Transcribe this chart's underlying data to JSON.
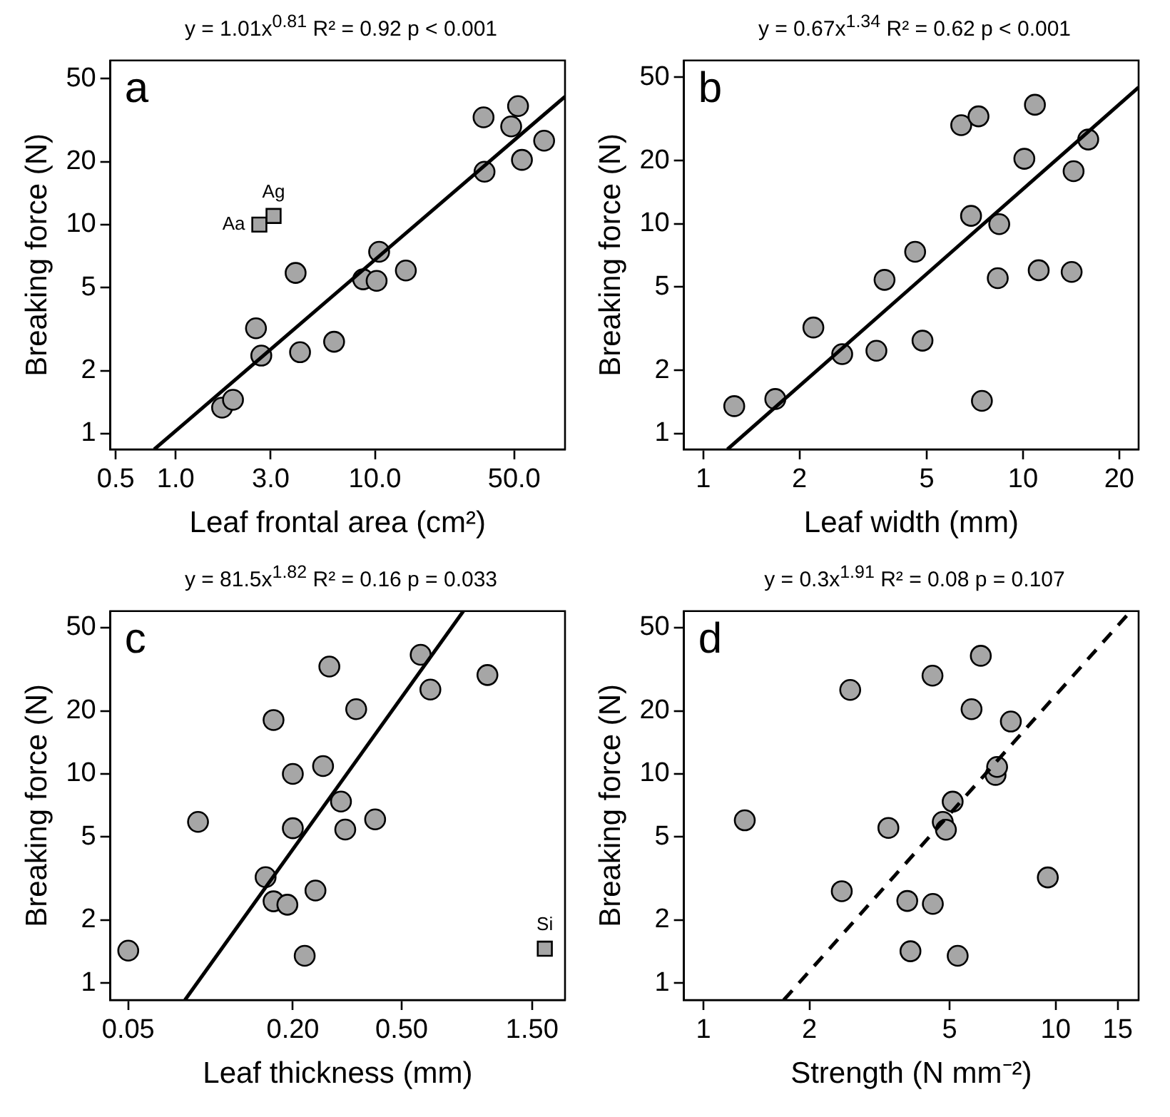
{
  "chart_data": [
    {
      "type": "scatter",
      "title": "y = 1.01x$^{0.81}$   R² = 0.92   p < 0.001",
      "xlabel": "Leaf frontal area (cm²)",
      "ylabel": "Breaking force (N)",
      "log": "xy",
      "xlim": [
        0.47,
        90
      ],
      "ylim": [
        0.84,
        61
      ],
      "xticks": [
        0.5,
        {
          "value": 1,
          "label": "1.0"
        },
        {
          "value": 3,
          "label": "3.0"
        },
        {
          "value": 10,
          "label": "10.0"
        },
        {
          "value": 50,
          "label": "50.0"
        }
      ],
      "yticks": [
        1,
        2,
        5,
        10,
        20,
        50
      ],
      "annotations": [
        "a",
        {
          "text": "Aa",
          "x": 2.63,
          "y": 10
        },
        {
          "text": "Ag",
          "x": 3.1,
          "y": 11
        }
      ],
      "series": [
        {
          "type": "scatter",
          "marker": "circle",
          "color": "#a6a6a6",
          "x": [
            1.71,
            1.94,
            2.53,
            2.69,
            4.0,
            4.21,
            6.24,
            8.73,
            10.2,
            10.5,
            14.3,
            35.1,
            35.5,
            48.3,
            52.3,
            54.7,
            70.7
          ],
          "values": [
            1.33,
            1.45,
            3.19,
            2.36,
            5.87,
            2.45,
            2.75,
            5.47,
            5.38,
            7.41,
            6.03,
            32.6,
            17.9,
            29.5,
            36.9,
            20.4,
            25.2
          ]
        },
        {
          "type": "scatter",
          "marker": "square",
          "color": "#a6a6a6",
          "x": [
            2.63,
            3.1
          ],
          "values": [
            10,
            11
          ]
        },
        {
          "type": "line",
          "marker": "none",
          "line_style": "solid",
          "color": "#000000",
          "x": [
            0.78,
            90
          ],
          "values": [
            0.84,
            41
          ]
        }
      ]
    },
    {
      "type": "scatter",
      "title": "y = 0.67x$^{1.34}$   R² = 0.62   p < 0.001",
      "xlabel": "Leaf width (mm)",
      "ylabel": "Breaking force (N)",
      "log": "xy",
      "xlim": [
        0.87,
        23
      ],
      "ylim": [
        0.84,
        60
      ],
      "xticks": [
        1,
        2,
        5,
        10,
        20
      ],
      "yticks": [
        1,
        2,
        5,
        10,
        20,
        50
      ],
      "annotations": [
        "b"
      ],
      "series": [
        {
          "type": "scatter",
          "marker": "circle",
          "color": "#a6a6a6",
          "x": [
            1.25,
            1.68,
            2.21,
            2.72,
            3.48,
            3.69,
            4.6,
            4.85,
            6.41,
            6.88,
            7.26,
            7.44,
            8.43,
            8.34,
            10.1,
            10.9,
            11.2,
            14.2,
            14.4,
            16.0
          ],
          "values": [
            1.35,
            1.46,
            3.2,
            2.39,
            2.48,
            5.4,
            7.35,
            2.77,
            29.5,
            10.9,
            32.5,
            1.43,
            9.95,
            5.5,
            20.4,
            36.9,
            6.0,
            5.89,
            17.8,
            25.2
          ]
        },
        {
          "type": "line",
          "marker": "none",
          "line_style": "solid",
          "color": "#000000",
          "x": [
            1.19,
            23
          ],
          "values": [
            0.84,
            44.7
          ]
        }
      ]
    },
    {
      "type": "scatter",
      "title": "y = 81.5x$^{1.82}$   R² = 0.16   p = 0.033",
      "xlabel": "Leaf thickness (mm)",
      "ylabel": "Breaking force (N)",
      "log": "xy",
      "xlim": [
        0.043,
        1.98
      ],
      "ylim": [
        0.83,
        60
      ],
      "xticks": [
        0.05,
        {
          "value": 0.2,
          "label": "0.20"
        },
        {
          "value": 0.5,
          "label": "0.50"
        },
        {
          "value": 1.5,
          "label": "1.50"
        }
      ],
      "yticks": [
        1,
        2,
        5,
        10,
        20,
        50
      ],
      "annotations": [
        "c",
        {
          "text": "Si",
          "x": 1.67,
          "y": 1.46
        }
      ],
      "series": [
        {
          "type": "scatter",
          "marker": "circle",
          "color": "#a6a6a6",
          "x": [
            0.05,
            0.09,
            0.159,
            0.17,
            0.17,
            0.191,
            0.2,
            0.2,
            0.221,
            0.242,
            0.258,
            0.272,
            0.3,
            0.311,
            0.341,
            0.4,
            0.587,
            0.637,
            1.03
          ],
          "values": [
            1.43,
            5.9,
            3.21,
            18.1,
            2.46,
            2.37,
            10.0,
            5.5,
            1.35,
            2.77,
            10.9,
            32.6,
            7.38,
            5.42,
            20.4,
            6.06,
            37.1,
            25.3,
            29.7
          ]
        },
        {
          "type": "scatter",
          "marker": "square",
          "color": "#a6a6a6",
          "x": [
            1.67
          ],
          "values": [
            1.46
          ]
        },
        {
          "type": "line",
          "marker": "none",
          "line_style": "solid",
          "color": "#000000",
          "x": [
            0.0806,
            0.841
          ],
          "values": [
            0.83,
            60
          ]
        }
      ]
    },
    {
      "type": "scatter",
      "title": "y = 0.3x$^{1.91}$   R² = 0.08   p = 0.107",
      "xlabel": "Strength (N mm⁻²)",
      "ylabel": "Breaking force (N)",
      "log": "xy",
      "xlim": [
        0.88,
        17.2
      ],
      "ylim": [
        0.83,
        60
      ],
      "xticks": [
        1,
        2,
        5,
        10,
        15
      ],
      "yticks": [
        1,
        2,
        5,
        10,
        20,
        50
      ],
      "annotations": [
        "d"
      ],
      "series": [
        {
          "type": "scatter",
          "marker": "circle",
          "color": "#a6a6a6",
          "x": [
            1.31,
            2.47,
            2.61,
            3.35,
            3.79,
            3.87,
            4.47,
            4.48,
            4.78,
            4.88,
            5.1,
            5.27,
            5.77,
            6.13,
            6.75,
            6.82,
            7.46,
            9.5
          ],
          "values": [
            6.0,
            2.75,
            25.2,
            5.52,
            2.47,
            1.42,
            29.5,
            2.39,
            5.9,
            5.41,
            7.37,
            1.35,
            20.4,
            36.7,
            9.89,
            10.8,
            17.8,
            3.2
          ]
        },
        {
          "type": "line",
          "marker": "none",
          "line_style": "dashed",
          "color": "#000000",
          "x": [
            1.69,
            16.0
          ],
          "values": [
            0.83,
            57.7
          ]
        }
      ]
    }
  ]
}
